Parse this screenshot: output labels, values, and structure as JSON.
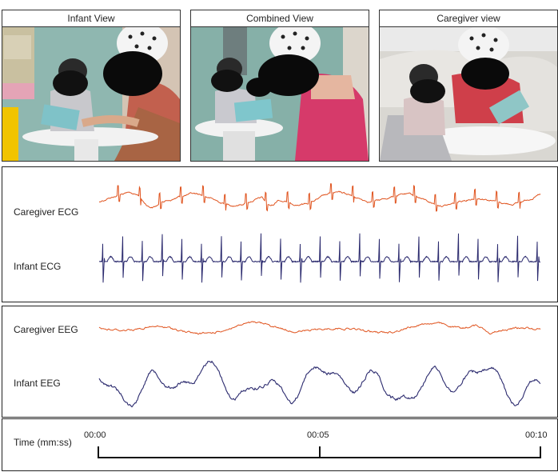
{
  "views": [
    {
      "id": "infant",
      "title": "Infant View"
    },
    {
      "id": "combined",
      "title": "Combined View"
    },
    {
      "id": "caregiver",
      "title": "Caregiver view"
    }
  ],
  "signals": {
    "caregiver_ecg": {
      "label": "Caregiver ECG",
      "color": "#e0541f"
    },
    "infant_ecg": {
      "label": "Infant ECG",
      "color": "#2b2a6e"
    },
    "caregiver_eeg": {
      "label": "Caregiver EEG",
      "color": "#e0541f"
    },
    "infant_eeg": {
      "label": "Infant EEG",
      "color": "#2b2a6e"
    }
  },
  "timeline": {
    "label": "Time (mm:ss)",
    "ticks": [
      "00:00",
      "00:05",
      "00:10"
    ]
  }
}
